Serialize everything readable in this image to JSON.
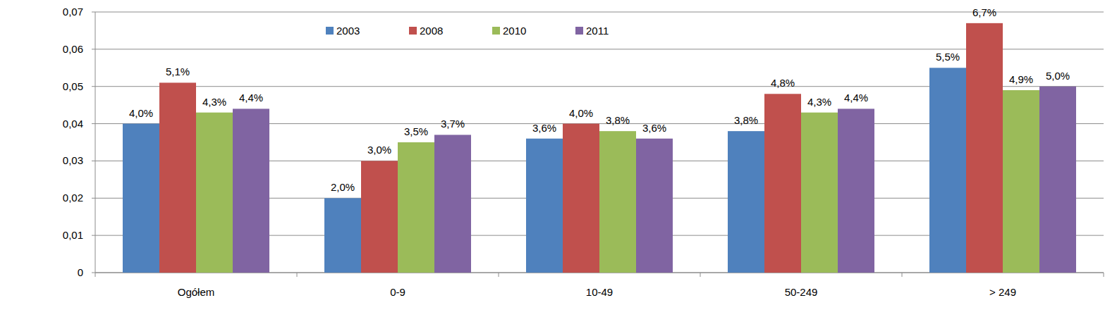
{
  "chart_data": {
    "type": "bar",
    "categories": [
      "Ogółem",
      "0-9",
      "10-49",
      "50-249",
      "> 249"
    ],
    "series": [
      {
        "name": "2003",
        "color": "#4f81bd",
        "values": [
          0.04,
          0.02,
          0.036,
          0.038,
          0.055
        ],
        "value_labels": [
          "4,0%",
          "2,0%",
          "3,6%",
          "3,8%",
          "5,5%"
        ]
      },
      {
        "name": "2008",
        "color": "#c0504d",
        "values": [
          0.051,
          0.03,
          0.04,
          0.048,
          0.067
        ],
        "value_labels": [
          "5,1%",
          "3,0%",
          "4,0%",
          "4,8%",
          "6,7%"
        ]
      },
      {
        "name": "2010",
        "color": "#9bbb59",
        "values": [
          0.043,
          0.035,
          0.038,
          0.043,
          0.049
        ],
        "value_labels": [
          "4,3%",
          "3,5%",
          "3,8%",
          "4,3%",
          "4,9%"
        ]
      },
      {
        "name": "2011",
        "color": "#8064a2",
        "values": [
          0.044,
          0.037,
          0.036,
          0.044,
          0.05
        ],
        "value_labels": [
          "4,4%",
          "3,7%",
          "3,6%",
          "4,4%",
          "5,0%"
        ]
      }
    ],
    "ylim": [
      0,
      0.07
    ],
    "yticks": [
      0,
      {
        "value": 0.01,
        "label": "0,01"
      },
      {
        "value": 0.02,
        "label": "0,02"
      },
      {
        "value": 0.03,
        "label": "0,03"
      },
      {
        "value": 0.04,
        "label": "0,04"
      },
      {
        "value": 0.05,
        "label": "0,05"
      },
      {
        "value": 0.06,
        "label": "0,06"
      },
      {
        "value": 0.07,
        "label": "0,07"
      }
    ],
    "grid": true,
    "legend": "top",
    "data_labels": true
  }
}
